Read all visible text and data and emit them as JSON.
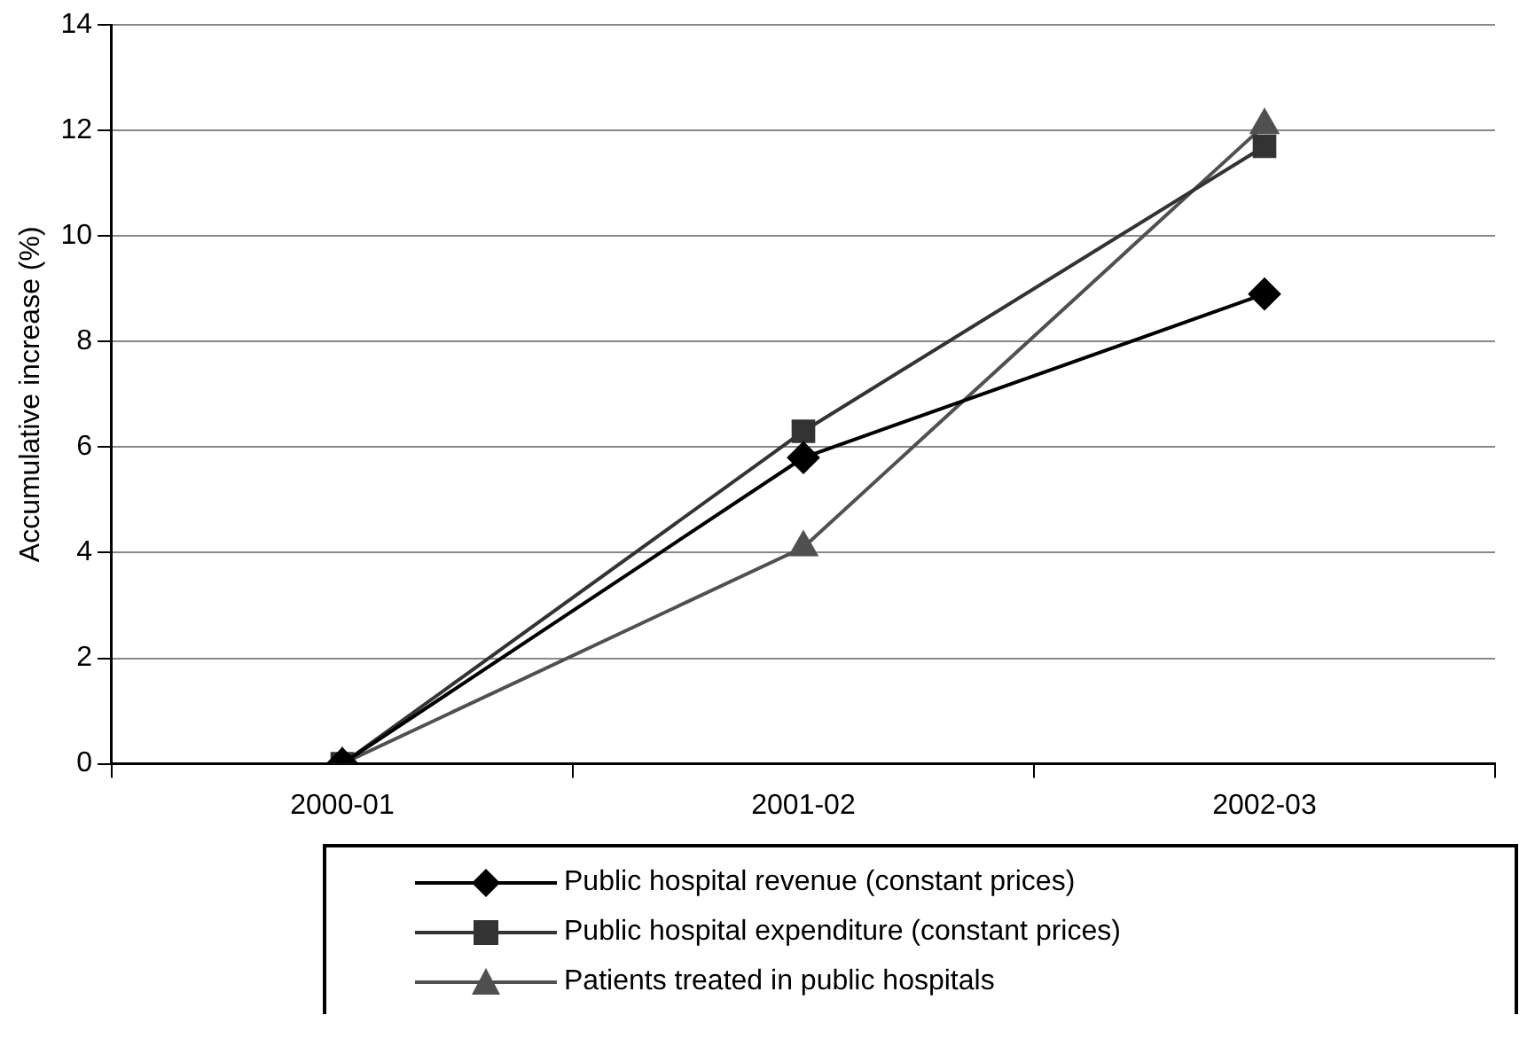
{
  "chart_data": {
    "type": "line",
    "ylabel": "Accumulative increase (%)",
    "categories": [
      "2000-01",
      "2001-02",
      "2002-03"
    ],
    "series": [
      {
        "name": "Public hospital revenue (constant prices)",
        "color": "#000000",
        "marker": "diamond",
        "values": [
          0,
          5.8,
          8.9
        ]
      },
      {
        "name": "Public hospital expenditure (constant prices)",
        "color": "#333333",
        "marker": "square",
        "values": [
          0,
          6.3,
          11.7
        ]
      },
      {
        "name": "Patients treated in public hospitals",
        "color": "#505050",
        "marker": "triangle",
        "values": [
          0,
          4.1,
          12.1
        ]
      }
    ],
    "ylim": [
      0,
      14
    ],
    "yticks": [
      0,
      2,
      4,
      6,
      8,
      10,
      12,
      14
    ],
    "grid": "y",
    "legend": "bottom",
    "line_style": "solid"
  }
}
